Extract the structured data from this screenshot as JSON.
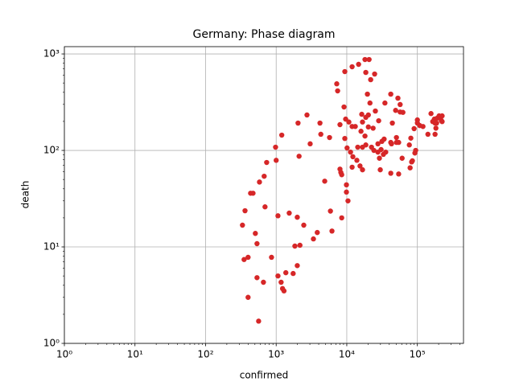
{
  "chart_data": {
    "type": "scatter",
    "title": "Germany: Phase diagram",
    "x_label": "confirmed",
    "y_label": "death",
    "color": "#d62728",
    "log_x": true,
    "log_y": true,
    "grid": true,
    "xlim": [
      1,
      450000
    ],
    "ylim": [
      1,
      1190
    ],
    "xticks": [
      {
        "value": 1,
        "label": "10⁰"
      },
      {
        "value": 10,
        "label": "10¹"
      },
      {
        "value": 100,
        "label": "10²"
      },
      {
        "value": 1000,
        "label": "10³"
      },
      {
        "value": 10000,
        "label": "10⁴"
      },
      {
        "value": 100000,
        "label": "10⁵"
      }
    ],
    "yticks": [
      {
        "value": 1,
        "label": "10⁰"
      },
      {
        "value": 10,
        "label": "10¹"
      },
      {
        "value": 100,
        "label": "10²"
      },
      {
        "value": 1000,
        "label": "10³"
      }
    ],
    "x": [
      333,
      351,
      362,
      400,
      400,
      434,
      470,
      507,
      535,
      535,
      564,
      580,
      660,
      676,
      695,
      733,
      859,
      980,
      1000,
      1060,
      1060,
      1175,
      1200,
      1230,
      1290,
      1370,
      1530,
      1740,
      1840,
      1990,
      1990,
      2040,
      2110,
      2170,
      2460,
      2730,
      3030,
      3370,
      3820,
      4170,
      4290,
      4870,
      5700,
      5870,
      6170,
      7210,
      7420,
      8010,
      8010,
      8240,
      8480,
      8480,
      9140,
      9380,
      9380,
      9640,
      9890,
      9890,
      10100,
      10400,
      10700,
      11300,
      11900,
      11900,
      11900,
      12200,
      13200,
      13900,
      14300,
      14700,
      15400,
      15900,
      16300,
      16700,
      16700,
      16700,
      18100,
      18100,
      18600,
      18600,
      18600,
      19600,
      20200,
      20200,
      20700,
      21300,
      21800,
      22400,
      23600,
      24800,
      24200,
      25400,
      27600,
      27600,
      28300,
      29000,
      29800,
      30600,
      31400,
      33000,
      33800,
      34700,
      35600,
      42000,
      42000,
      42000,
      43000,
      44200,
      49200,
      50500,
      50500,
      53000,
      54300,
      54300,
      57000,
      57000,
      62400,
      60800,
      76900,
      78900,
      80800,
      82900,
      85000,
      89900,
      92200,
      94600,
      100000,
      100000,
      108000,
      120000,
      141000,
      156000,
      165000,
      174000,
      178000,
      178000,
      183000,
      187000,
      191000,
      203000,
      213000,
      219000,
      224000,
      224000
    ],
    "values": [
      16.8,
      7.4,
      23.7,
      7.8,
      3.0,
      36,
      36,
      13.8,
      10.8,
      4.8,
      1.7,
      47,
      4.3,
      54,
      26,
      75,
      7.8,
      108,
      79,
      5.0,
      21,
      4.3,
      144,
      3.7,
      3.5,
      5.4,
      22.4,
      5.3,
      10.2,
      6.4,
      20.3,
      192,
      87,
      10.4,
      16.8,
      233,
      117,
      12.1,
      14.1,
      192,
      147,
      48,
      136,
      23.5,
      14.6,
      490,
      414,
      185,
      64,
      59,
      56,
      20,
      282,
      656,
      133,
      211,
      44,
      37,
      106,
      30,
      197,
      96,
      736,
      177,
      67,
      86,
      177,
      79,
      108,
      780,
      69,
      158,
      237,
      108,
      63,
      197,
      875,
      141,
      643,
      220,
      114,
      383,
      175,
      233,
      875,
      310,
      541,
      108,
      170,
      619,
      100,
      256,
      117,
      96,
      203,
      83,
      63,
      102,
      124,
      91,
      131,
      310,
      96,
      58,
      121,
      383,
      117,
      192,
      260,
      121,
      136,
      348,
      121,
      57,
      299,
      250,
      248,
      83,
      114,
      66,
      134,
      76,
      78,
      168,
      94,
      100,
      207,
      192,
      181,
      177,
      147,
      241,
      199,
      211,
      192,
      147,
      170,
      192,
      216,
      228,
      216,
      203,
      228,
      199
    ]
  }
}
